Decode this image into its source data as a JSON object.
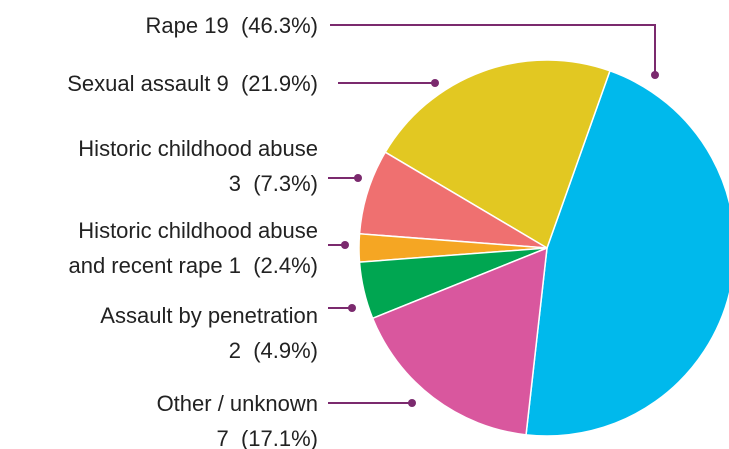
{
  "chart_data": {
    "type": "pie",
    "categories": [
      "Rape",
      "Sexual assault",
      "Historic childhood abuse",
      "Historic childhood abuse and recent rape",
      "Assault by penetration",
      "Other / unknown"
    ],
    "counts": [
      19,
      9,
      3,
      1,
      2,
      7
    ],
    "values": [
      46.3,
      21.9,
      7.3,
      2.4,
      4.9,
      17.1
    ],
    "value_labels": [
      "(46.3%)",
      "(21.9%)",
      "(7.3%)",
      "(2.4%)",
      "(4.9%)",
      "(17.1%)"
    ],
    "colors": [
      "#00b9ec",
      "#e2c822",
      "#ef7070",
      "#f5a623",
      "#00a651",
      "#d9579e"
    ],
    "leader_color": "#7b2a6e"
  }
}
